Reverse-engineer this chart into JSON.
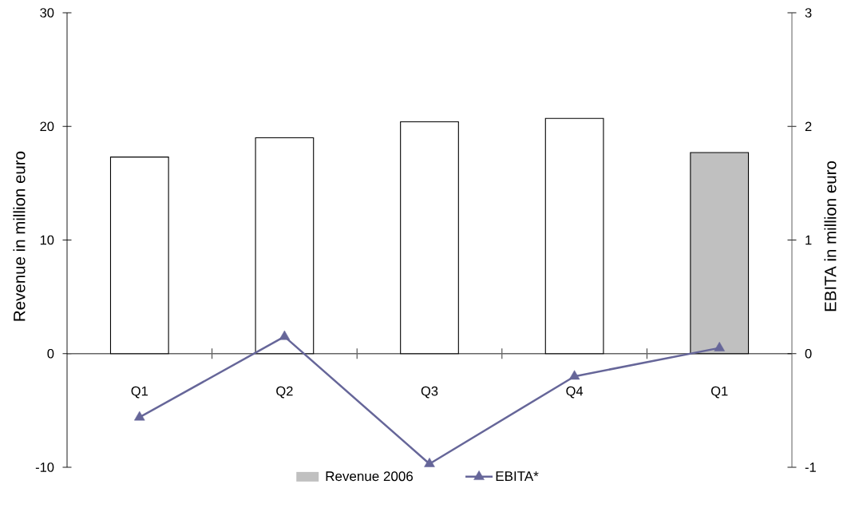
{
  "chart_data": {
    "type": "bar",
    "categories": [
      "Q1",
      "Q2",
      "Q3",
      "Q4",
      "Q1"
    ],
    "series": [
      {
        "color": "#ffffff",
        "values": [
          17.3,
          19.0,
          20.4,
          20.7,
          null
        ]
      },
      {
        "name": "Revenue 2006",
        "color": "#c0c0c0",
        "values": [
          null,
          null,
          null,
          null,
          17.7
        ]
      },
      {
        "name": "EBITA*",
        "type": "line",
        "axis": "y2",
        "color": "#666699",
        "values": [
          -0.56,
          0.15,
          -0.97,
          -0.2,
          0.05
        ]
      }
    ],
    "ylabel": "Revenue in million euro",
    "y2label": "EBITA in million euro",
    "ylim": [
      -10,
      30
    ],
    "yticks": [
      -10,
      0,
      10,
      20,
      30
    ],
    "y2lim": [
      -1,
      3
    ],
    "y2ticks": [
      -1,
      0,
      1,
      2,
      3
    ],
    "marker": "triangle",
    "legend": "bottom"
  }
}
